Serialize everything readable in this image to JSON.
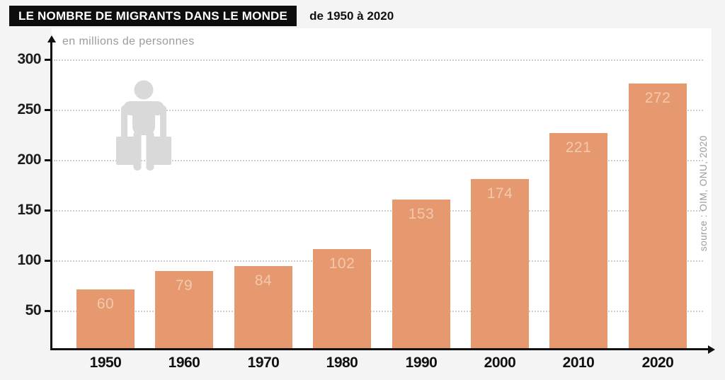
{
  "header": {
    "title": "LE NOMBRE DE MIGRANTS DANS LE MONDE",
    "subtitle": "de 1950 à 2020"
  },
  "chart_data": {
    "type": "bar",
    "title": "LE NOMBRE DE MIGRANTS DANS LE MONDE",
    "subtitle": "de 1950 à 2020",
    "unit_label": "en millions de personnes",
    "categories": [
      "1950",
      "1960",
      "1970",
      "1980",
      "1990",
      "2000",
      "2010",
      "2020"
    ],
    "values": [
      60,
      79,
      84,
      102,
      153,
      174,
      221,
      272
    ],
    "yticks": [
      50,
      100,
      150,
      200,
      250,
      300
    ],
    "ylim": [
      0,
      310
    ],
    "grid": "horizontal-dotted",
    "legend": "none",
    "bar_color": "#e6996f",
    "bar_label_color": "#f2c9ae",
    "source": "source : OIM, ONU, 2020"
  },
  "icons": {
    "migrant_icon": "person-with-two-suitcases"
  }
}
